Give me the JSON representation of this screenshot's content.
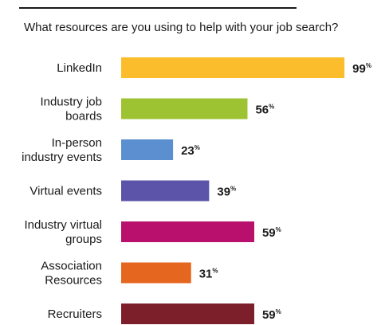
{
  "chart_data": {
    "type": "bar",
    "orientation": "horizontal",
    "title": "What resources are you using to help with your job search?",
    "categories": [
      [
        "LinkedIn"
      ],
      [
        "Industry job",
        "boards"
      ],
      [
        "In-person",
        "industry events"
      ],
      [
        "Virtual events"
      ],
      [
        "Industry virtual",
        "groups"
      ],
      [
        "Association",
        "Resources"
      ],
      [
        "Recruiters"
      ]
    ],
    "values": [
      99,
      56,
      23,
      39,
      59,
      31,
      59
    ],
    "value_suffix": "%",
    "colors": [
      "#fbbd2c",
      "#9dc232",
      "#5b8fd0",
      "#5b54a8",
      "#b8106c",
      "#e5661e",
      "#7c1f2a"
    ],
    "xlim": [
      0,
      100
    ],
    "grid": false,
    "legend": "none"
  }
}
